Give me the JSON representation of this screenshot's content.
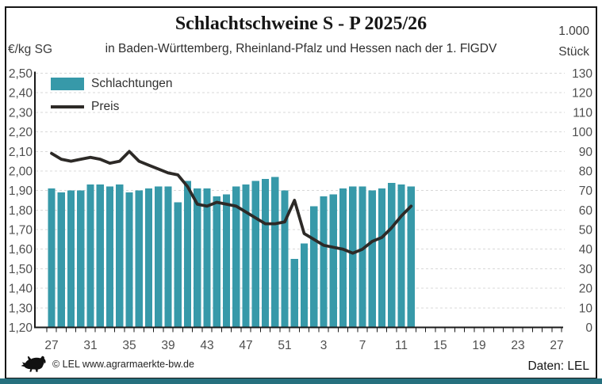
{
  "header": {
    "title": "Schlachtschweine S - P 2025/26",
    "subtitle": "in Baden-Württemberg, Rheinland-Pfalz und Hessen nach der 1. FlGDV",
    "left_axis_unit": "€/kg SG",
    "right_axis_unit_line1": "1.000",
    "right_axis_unit_line2": "Stück"
  },
  "legend": {
    "bars_label": "Schlachtungen",
    "line_label": "Preis"
  },
  "footer": {
    "copyright": "© LEL www.agrarmaerkte-bw.de",
    "source": "Daten: LEL",
    "logo": "bw-lion-icon"
  },
  "colors": {
    "bar": "#3799a9",
    "line": "#2d2a27",
    "grid": "#d8d8d8",
    "axis": "#1a1a1a",
    "axis_text": "#4f4f4f",
    "strip": "#26707e"
  },
  "chart_data": {
    "type": "combo",
    "title": "Schlachtschweine S - P 2025/26",
    "subtitle": "in Baden-Württemberg, Rheinland-Pfalz und Hessen nach der 1. FlGDV",
    "grid": "horizontal-dashed",
    "legend_position": "top-left-inside",
    "x_axis": {
      "weeks_full": [
        27,
        28,
        29,
        30,
        31,
        32,
        33,
        34,
        35,
        36,
        37,
        38,
        39,
        40,
        41,
        42,
        43,
        44,
        45,
        46,
        47,
        48,
        49,
        50,
        51,
        52,
        1,
        2,
        3,
        4,
        5,
        6,
        7,
        8,
        9,
        10,
        11,
        12,
        13,
        14,
        15,
        16,
        17,
        18,
        19,
        20,
        21,
        22,
        23,
        24,
        25,
        26,
        27
      ],
      "label_every": 4,
      "tick_labels_shown": [
        "27",
        "31",
        "35",
        "39",
        "43",
        "47",
        "51",
        "3",
        "7",
        "11",
        "15",
        "19",
        "23",
        "27"
      ]
    },
    "left_axis": {
      "title": "€/kg SG",
      "min": 1.2,
      "max": 2.5,
      "step": 0.1,
      "tick_labels": [
        "2,50",
        "2,40",
        "2,30",
        "2,20",
        "2,10",
        "2,00",
        "1,90",
        "1,80",
        "1,70",
        "1,60",
        "1,50",
        "1,40",
        "1,30",
        "1,20"
      ]
    },
    "right_axis": {
      "title": "1.000 Stück",
      "min": 0,
      "max": 130,
      "step": 10,
      "tick_labels": [
        "130",
        "120",
        "110",
        "100",
        "90",
        "80",
        "70",
        "60",
        "50",
        "40",
        "30",
        "20",
        "10",
        "0"
      ]
    },
    "data_weeks": [
      "27",
      "28",
      "29",
      "30",
      "31",
      "32",
      "33",
      "34",
      "35",
      "36",
      "37",
      "38",
      "39",
      "40",
      "41",
      "42",
      "43",
      "44",
      "45",
      "46",
      "47",
      "48",
      "49",
      "50",
      "51",
      "52",
      "1",
      "2",
      "3",
      "4",
      "5",
      "6",
      "7",
      "8",
      "9",
      "10",
      "11",
      "12"
    ],
    "series": [
      {
        "name": "Schlachtungen",
        "type": "bar",
        "axis": "right",
        "values": [
          71,
          69,
          70,
          70,
          73,
          73,
          72,
          73,
          69,
          70,
          71,
          72,
          72,
          64,
          75,
          71,
          71,
          67,
          68,
          72,
          73,
          75,
          76,
          77,
          70,
          35,
          43,
          62,
          67,
          68,
          71,
          72,
          72,
          70,
          71,
          74,
          73,
          72
        ]
      },
      {
        "name": "Preis",
        "type": "line",
        "axis": "left",
        "values": [
          2.09,
          2.06,
          2.05,
          2.06,
          2.07,
          2.06,
          2.04,
          2.05,
          2.1,
          2.05,
          2.03,
          2.01,
          1.99,
          1.98,
          1.92,
          1.83,
          1.82,
          1.84,
          1.83,
          1.82,
          1.79,
          1.76,
          1.73,
          1.73,
          1.74,
          1.85,
          1.68,
          1.65,
          1.62,
          1.61,
          1.6,
          1.58,
          1.6,
          1.64,
          1.66,
          1.71,
          1.77,
          1.82
        ]
      }
    ]
  }
}
